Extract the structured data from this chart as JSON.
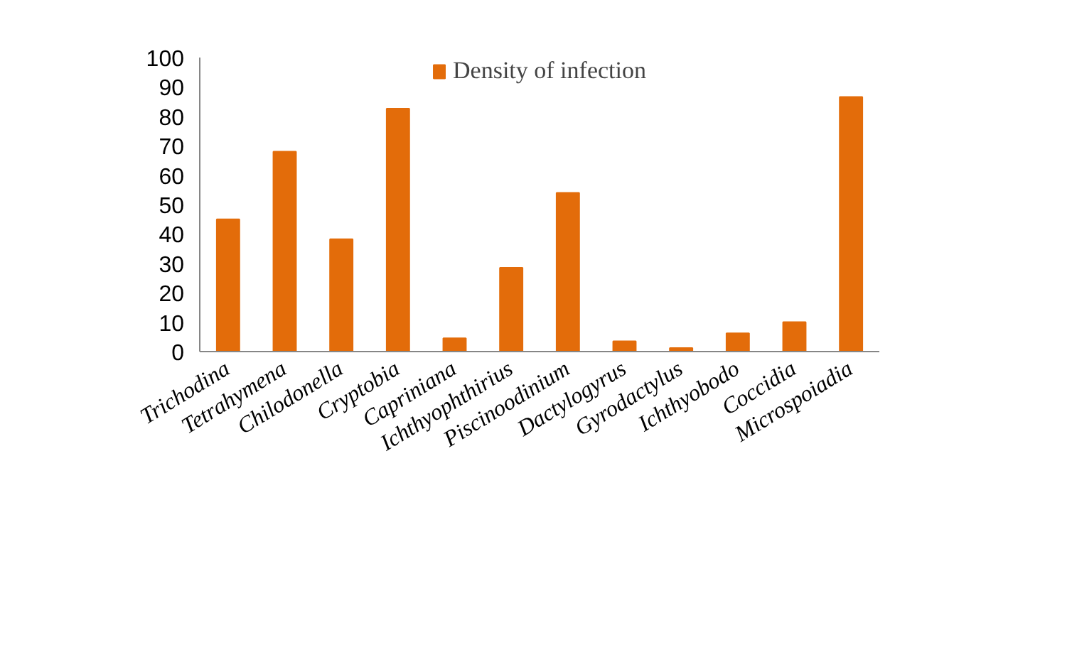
{
  "chart_data": {
    "type": "bar",
    "categories": [
      "Trichodina",
      "Tetrahymena",
      "Chilodonella",
      "Cryptobia",
      "Capriniana",
      "Ichthyophthirius",
      "Piscinoodinium",
      "Dactylogyrus",
      "Gyrodactylus",
      "Ichthyobodo",
      "Coccidia",
      "Microspoiadia"
    ],
    "series": [
      {
        "name": "Density of infection",
        "color": "#e36c0a",
        "values": [
          45,
          68,
          38.2,
          82.6,
          4.5,
          28.5,
          54,
          3.5,
          1.2,
          6.2,
          10,
          86.6
        ]
      }
    ],
    "ylim": [
      0,
      100
    ],
    "yticks": [
      0,
      10,
      20,
      30,
      40,
      50,
      60,
      70,
      80,
      90,
      100
    ],
    "grid": false,
    "legend": "top"
  }
}
